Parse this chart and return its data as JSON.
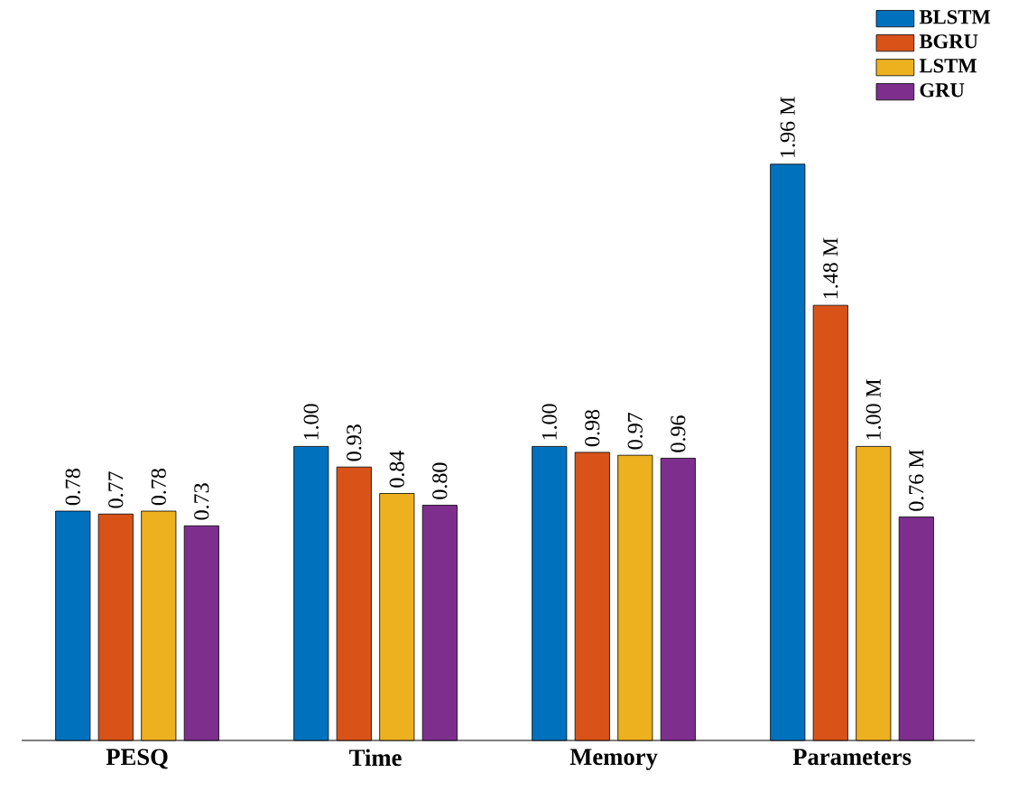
{
  "chart_data": {
    "type": "bar",
    "legend": "top right",
    "categories": [
      "PESQ",
      "Time",
      "Memory",
      "Parameters"
    ],
    "series": [
      {
        "name": "BLSTM",
        "color": "#0072bd",
        "values": [
          0.78,
          1.0,
          1.0,
          1.96
        ],
        "value_labels": [
          "0.78",
          "1.00",
          "1.00",
          "1.96 M"
        ]
      },
      {
        "name": "BGRU",
        "color": "#d95319",
        "values": [
          0.77,
          0.93,
          0.98,
          1.48
        ],
        "value_labels": [
          "0.77",
          "0.93",
          "0.98",
          "1.48 M"
        ]
      },
      {
        "name": "LSTM",
        "color": "#edb120",
        "values": [
          0.78,
          0.84,
          0.97,
          1.0
        ],
        "value_labels": [
          "0.78",
          "0.84",
          "0.97",
          "1.00 M"
        ]
      },
      {
        "name": "GRU",
        "color": "#7e2f8e",
        "values": [
          0.73,
          0.8,
          0.96,
          0.76
        ],
        "value_labels": [
          "0.73",
          "0.80",
          "0.96",
          "0.76 M"
        ]
      }
    ]
  }
}
